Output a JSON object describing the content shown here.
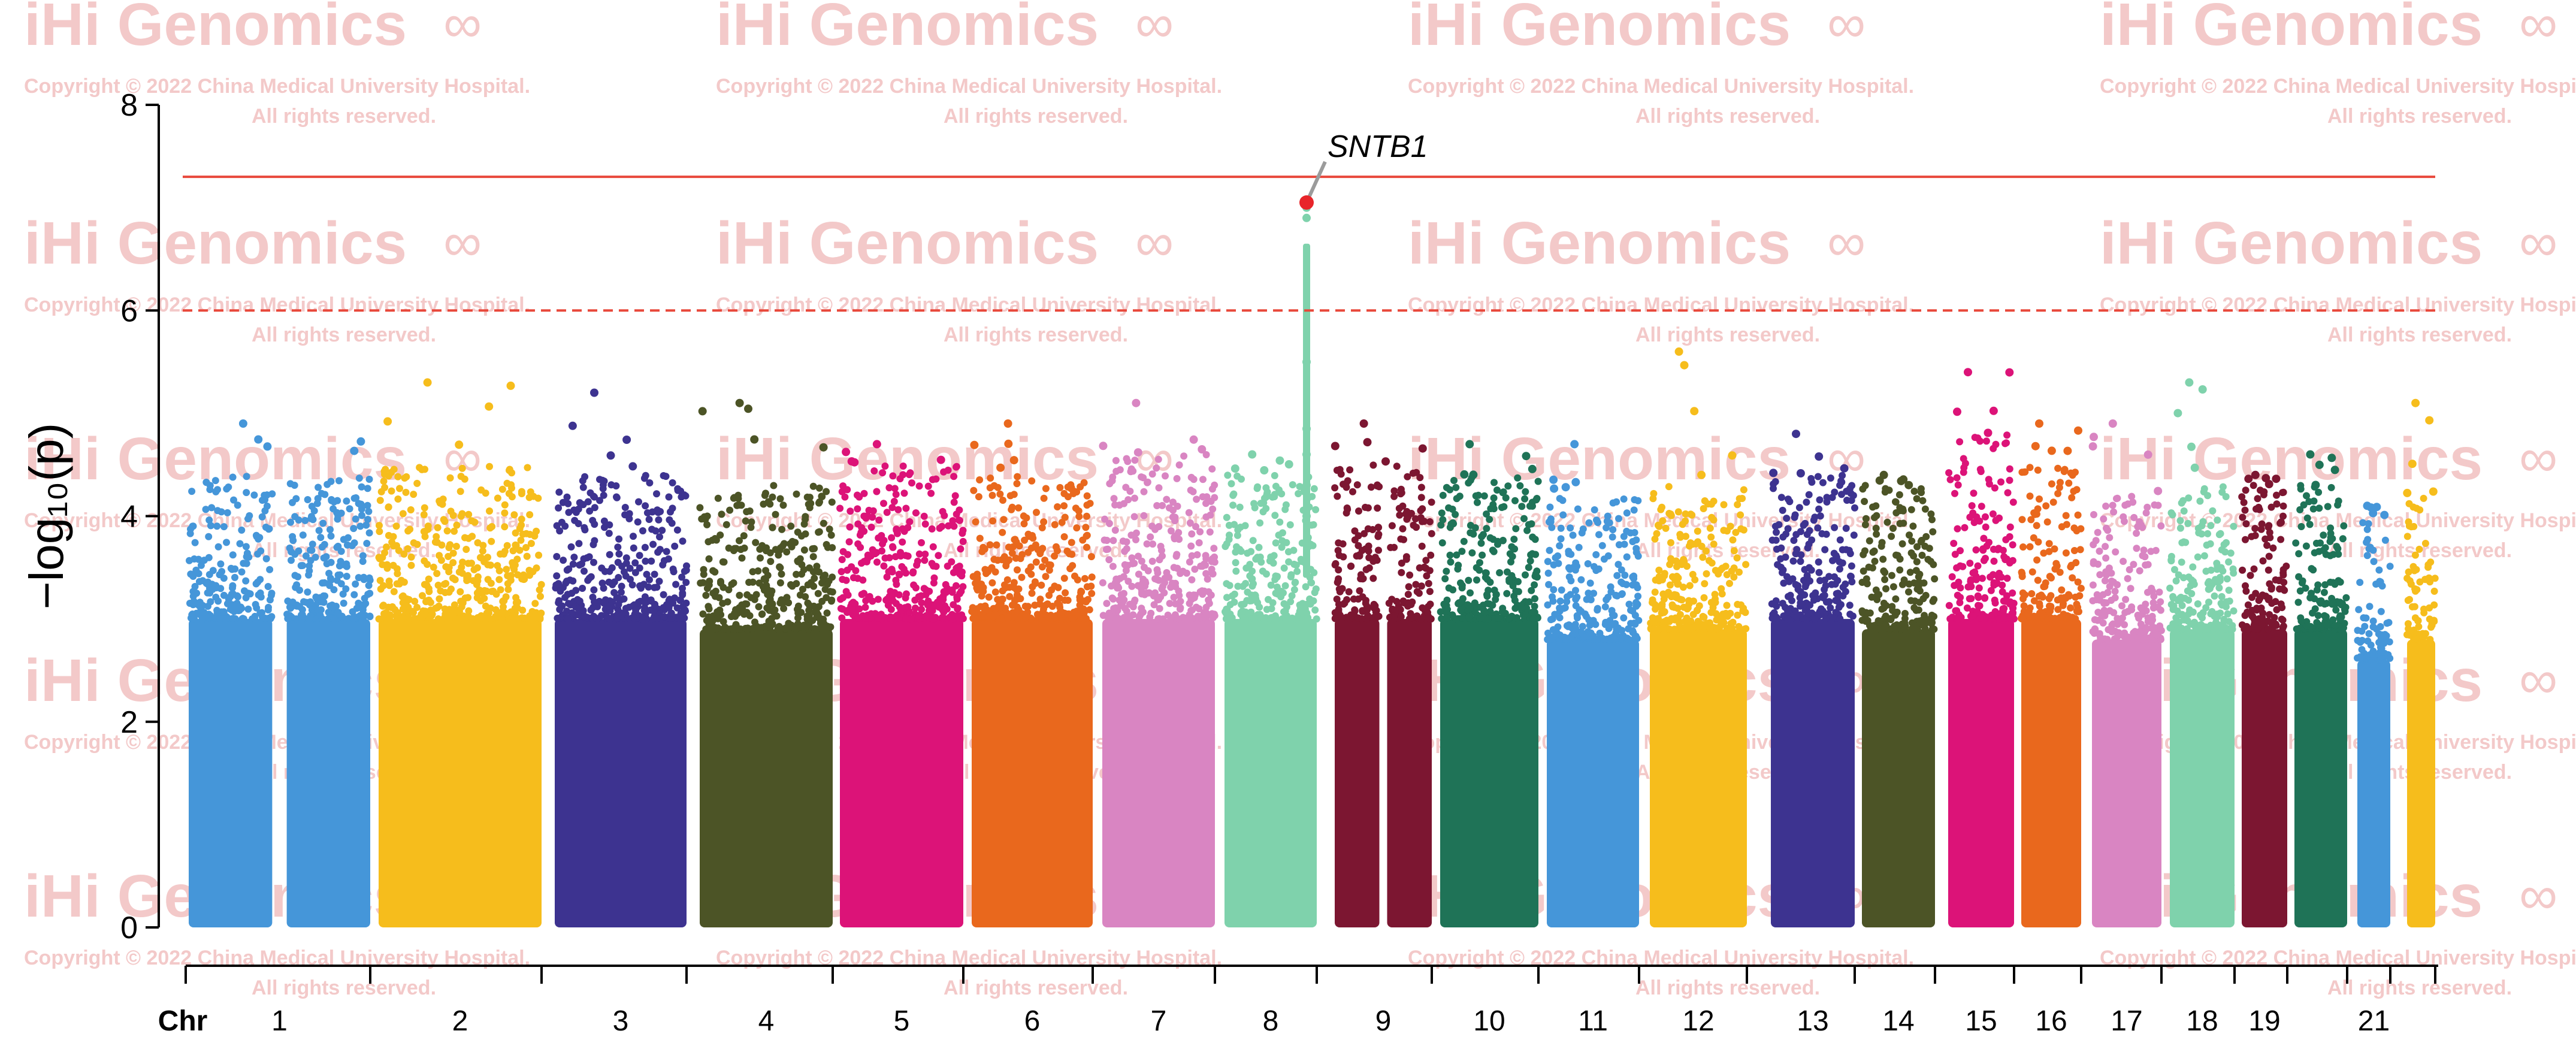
{
  "watermark": {
    "brand": "iHi Genomics",
    "line1": "Copyright © 2022 China Medical University Hospital.",
    "line2": "All rights reserved.",
    "color": "#f3c9c9"
  },
  "chart_data": {
    "type": "scatter",
    "subtype": "manhattan",
    "title": "",
    "xlabel": "Chr",
    "ylabel": "−log₁₀(p)",
    "ylim": [
      0,
      8
    ],
    "yticks": [
      0,
      2,
      4,
      6,
      8
    ],
    "grid": false,
    "legend": "none",
    "thresholds": [
      {
        "value": 7.3,
        "style": "solid",
        "color": "#e8483b"
      },
      {
        "value": 6.0,
        "style": "dashed",
        "color": "#e8483b"
      }
    ],
    "annotation": {
      "label": "SNTB1",
      "chromosome": "8",
      "value": 7.05,
      "marker_color": "#e8252a"
    },
    "chromosomes": [
      {
        "chr": "1",
        "label": "1",
        "color": "#4596d9",
        "max": 4.9,
        "bulk": 4.4,
        "split": true
      },
      {
        "chr": "2",
        "label": "2",
        "color": "#f6bd1c",
        "max": 5.3,
        "bulk": 4.5,
        "split": false
      },
      {
        "chr": "3",
        "label": "3",
        "color": "#3d3390",
        "max": 5.2,
        "bulk": 4.4,
        "split": false
      },
      {
        "chr": "4",
        "label": "4",
        "color": "#4c5426",
        "max": 5.1,
        "bulk": 4.3,
        "split": false
      },
      {
        "chr": "5",
        "label": "5",
        "color": "#dc1378",
        "max": 4.7,
        "bulk": 4.5,
        "split": false
      },
      {
        "chr": "6",
        "label": "6",
        "color": "#e9681d",
        "max": 4.9,
        "bulk": 4.4,
        "split": false
      },
      {
        "chr": "7",
        "label": "7",
        "color": "#d985c2",
        "max": 5.1,
        "bulk": 4.6,
        "split": false
      },
      {
        "chr": "8",
        "label": "8",
        "color": "#7fd2ac",
        "max": 4.6,
        "bulk": 4.4,
        "split": false
      },
      {
        "chr": "9",
        "label": "9",
        "color": "#7c1631",
        "max": 4.9,
        "bulk": 4.5,
        "split": true
      },
      {
        "chr": "10",
        "label": "10",
        "color": "#1f7357",
        "max": 4.7,
        "bulk": 4.4,
        "split": false
      },
      {
        "chr": "11",
        "label": "11",
        "color": "#4596d9",
        "max": 4.7,
        "bulk": 4.2,
        "split": false
      },
      {
        "chr": "12",
        "label": "12",
        "color": "#f6bd1c",
        "max": 5.6,
        "bulk": 4.3,
        "split": false
      },
      {
        "chr": "13",
        "label": "13",
        "color": "#3d3390",
        "max": 4.8,
        "bulk": 4.4,
        "split": false
      },
      {
        "chr": "14",
        "label": "14",
        "color": "#4c5426",
        "max": 4.4,
        "bulk": 4.3,
        "split": false
      },
      {
        "chr": "15",
        "label": "15",
        "color": "#dc1378",
        "max": 5.4,
        "bulk": 4.8,
        "split": false
      },
      {
        "chr": "16",
        "label": "16",
        "color": "#e9681d",
        "max": 4.9,
        "bulk": 4.5,
        "split": false
      },
      {
        "chr": "17",
        "label": "17",
        "color": "#d985c2",
        "max": 4.9,
        "bulk": 4.2,
        "split": false
      },
      {
        "chr": "18",
        "label": "18",
        "color": "#7fd2ac",
        "max": 5.3,
        "bulk": 4.3,
        "split": false
      },
      {
        "chr": "19",
        "label": "19",
        "color": "#7c1631",
        "max": 4.4,
        "bulk": 4.3,
        "split": false
      },
      {
        "chr": "20",
        "label": "",
        "color": "#1f7357",
        "max": 4.6,
        "bulk": 4.3,
        "split": false
      },
      {
        "chr": "21",
        "label": "21",
        "color": "#4596d9",
        "max": 4.1,
        "bulk": 4.0,
        "split": false
      },
      {
        "chr": "22",
        "label": "",
        "color": "#f6bd1c",
        "max": 5.1,
        "bulk": 4.2,
        "split": false
      }
    ]
  }
}
